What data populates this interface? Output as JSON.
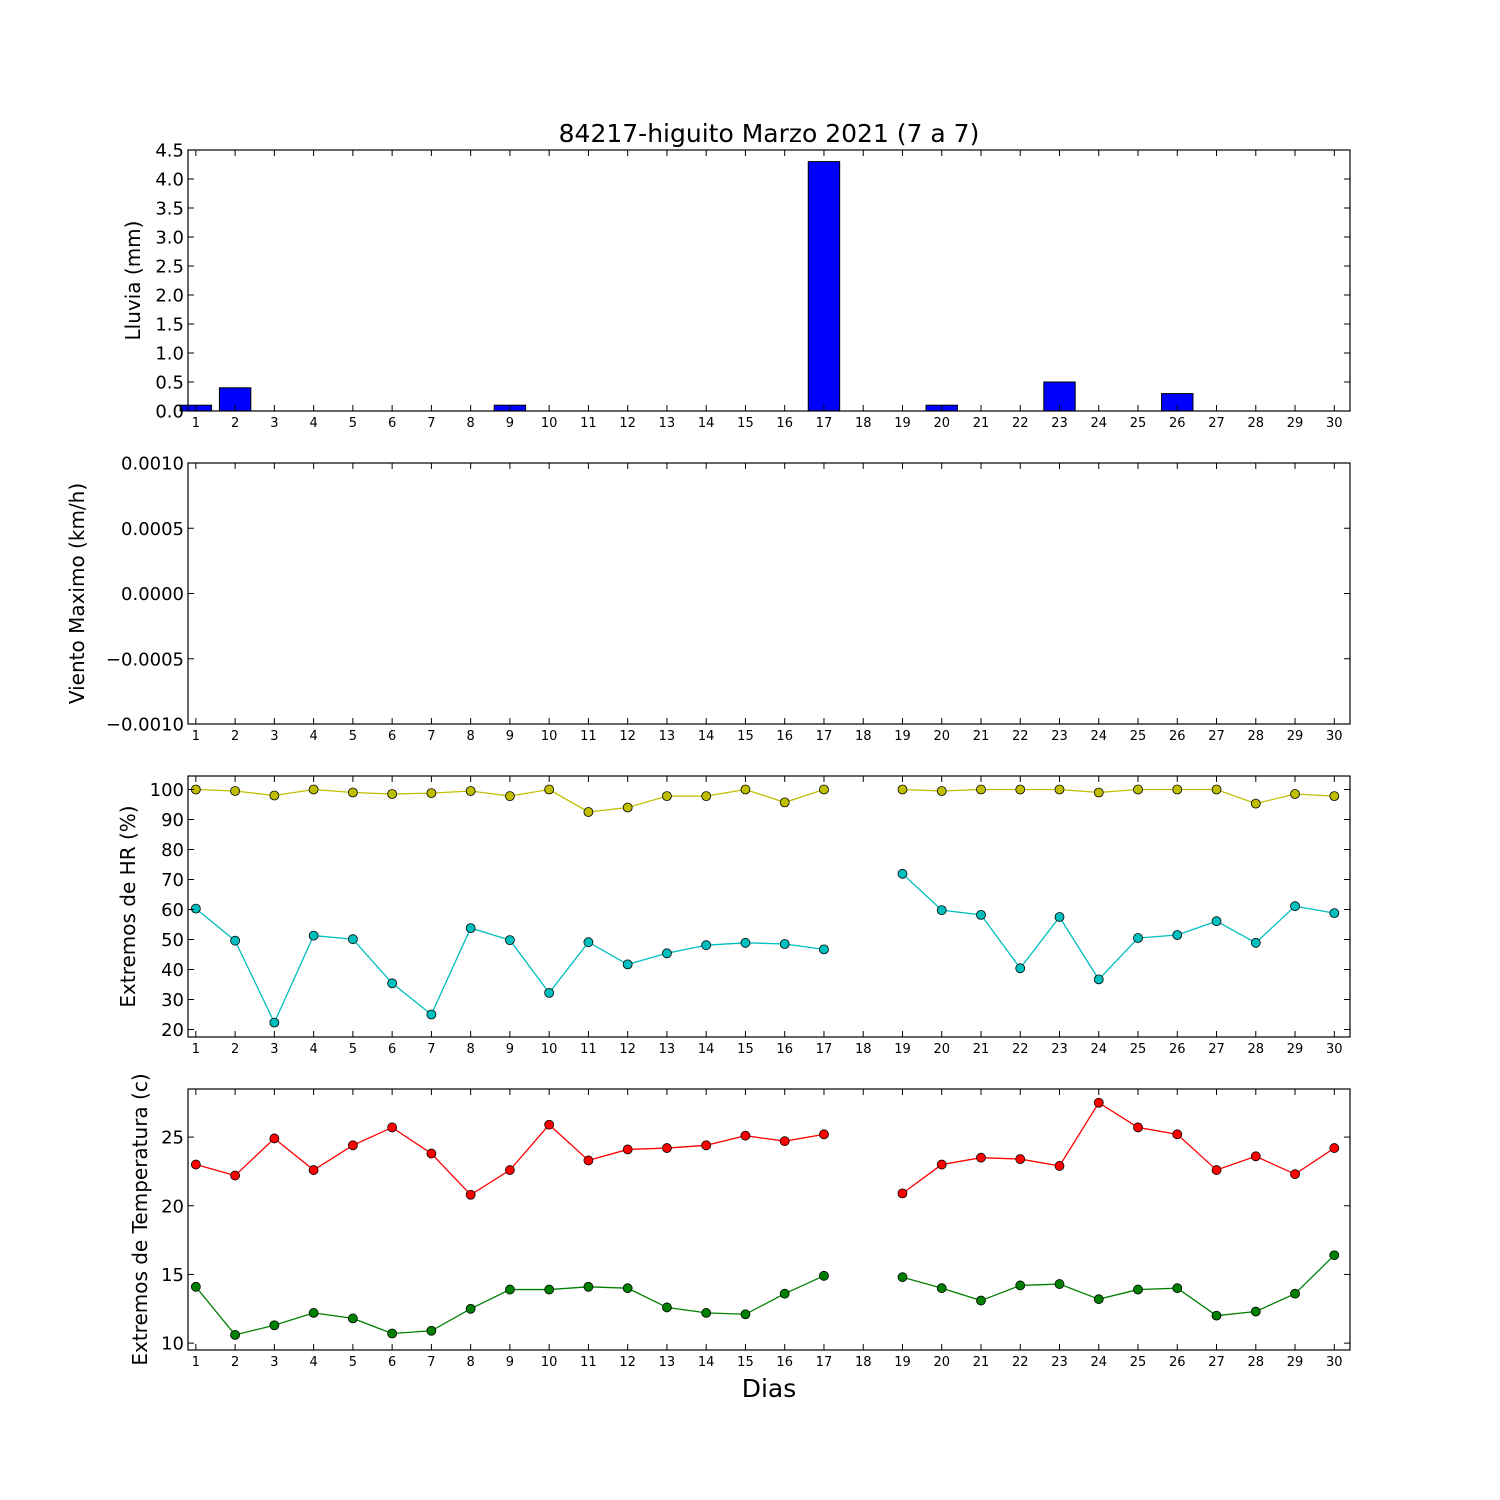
{
  "chart_data": {
    "title": "84217-higuito Marzo 2021  (7 a 7)",
    "xlabel": "Dias",
    "days": [
      "1",
      "2",
      "3",
      "4",
      "5",
      "6",
      "7",
      "8",
      "9",
      "10",
      "11",
      "12",
      "13",
      "14",
      "15",
      "16",
      "17",
      "18",
      "19",
      "20",
      "21",
      "22",
      "23",
      "24",
      "25",
      "26",
      "27",
      "28",
      "29",
      "30"
    ],
    "panels": [
      {
        "type": "bar",
        "ylabel": "Lluvia (mm)",
        "ylim": [
          0,
          4.5
        ],
        "yticks": [
          "0.0",
          "0.5",
          "1.0",
          "1.5",
          "2.0",
          "2.5",
          "3.0",
          "3.5",
          "4.0",
          "4.5"
        ],
        "series": [
          {
            "color": "#0000ff",
            "values": [
              0.1,
              0.4,
              0,
              0,
              0,
              0,
              0,
              0,
              0.1,
              0,
              0,
              0,
              0,
              0,
              0,
              0,
              4.3,
              0,
              0,
              0.1,
              0,
              0,
              0.5,
              0,
              0,
              0.3,
              0,
              0,
              0,
              0
            ]
          }
        ]
      },
      {
        "type": "line",
        "ylabel": "Viento Maximo (km/h)",
        "ylim": [
          -0.001,
          0.001
        ],
        "yticks": [
          "−0.0010",
          "−0.0005",
          "0.0000",
          "0.0005",
          "0.0010"
        ],
        "series": []
      },
      {
        "type": "line",
        "ylabel": "Extremos de HR (%)",
        "ylim": [
          17.5,
          104.5
        ],
        "yticks": [
          "20",
          "30",
          "40",
          "50",
          "60",
          "70",
          "80",
          "90",
          "100"
        ],
        "series": [
          {
            "color": "#bfbf00",
            "values": [
              100,
              99.5,
              98,
              100,
              99,
              98.5,
              98.8,
              99.5,
              97.8,
              100,
              92.5,
              94,
              97.8,
              97.8,
              100,
              95.7,
              100,
              null,
              100,
              99.5,
              100,
              100,
              100,
              99,
              100,
              100,
              100,
              95.3,
              98.5,
              97.8
            ]
          },
          {
            "color": "#00bfbf",
            "values": [
              60.3,
              49.6,
              22.3,
              51.3,
              50.1,
              35.4,
              25,
              53.8,
              49.8,
              32.2,
              49.1,
              41.7,
              45.4,
              48.1,
              48.9,
              48.5,
              46.7,
              null,
              71.9,
              59.8,
              58.2,
              40.4,
              57.5,
              36.7,
              50.5,
              51.5,
              56.1,
              48.9,
              61.1,
              58.8
            ]
          }
        ]
      },
      {
        "type": "line",
        "ylabel": "Extremos de Temperatura (c)",
        "ylim": [
          9.5,
          28.5
        ],
        "yticks": [
          "10",
          "15",
          "20",
          "25"
        ],
        "series": [
          {
            "color": "#ff0000",
            "values": [
              23,
              22.2,
              24.9,
              22.6,
              24.4,
              25.7,
              23.8,
              20.8,
              22.6,
              25.9,
              23.3,
              24.1,
              24.2,
              24.4,
              25.1,
              24.7,
              25.2,
              null,
              20.9,
              23,
              23.5,
              23.4,
              22.9,
              27.5,
              25.7,
              25.2,
              22.6,
              23.6,
              22.3,
              24.2
            ]
          },
          {
            "color": "#008000",
            "values": [
              14.1,
              10.6,
              11.3,
              12.2,
              11.8,
              10.7,
              10.9,
              12.5,
              13.9,
              13.9,
              14.1,
              14,
              12.6,
              12.2,
              12.1,
              13.6,
              14.9,
              null,
              14.8,
              14,
              13.1,
              14.2,
              14.3,
              13.2,
              13.9,
              14,
              12,
              12.3,
              13.6,
              16.4
            ]
          }
        ]
      }
    ]
  }
}
